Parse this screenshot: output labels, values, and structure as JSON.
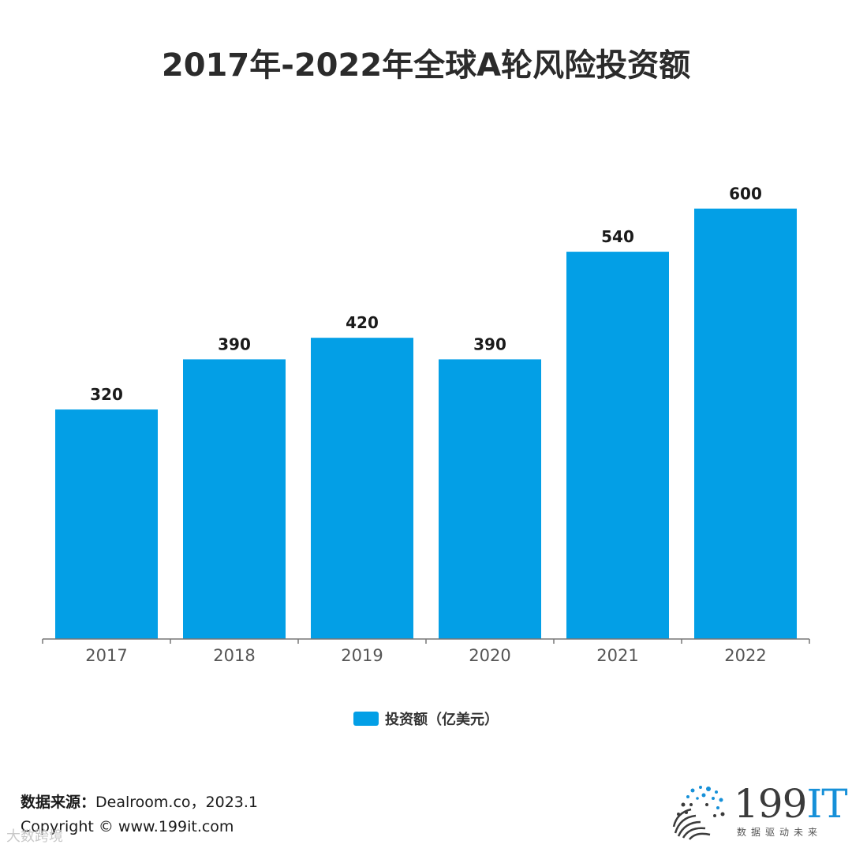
{
  "chart_data": {
    "type": "bar",
    "title": "2017年-2022年全球A轮风险投资额",
    "categories": [
      "2017",
      "2018",
      "2019",
      "2020",
      "2021",
      "2022"
    ],
    "series": [
      {
        "name": "投资额（亿美元）",
        "values": [
          320,
          390,
          420,
          390,
          540,
          600
        ]
      }
    ],
    "ylim": [
      0,
      660
    ],
    "grid": false,
    "legend": "bottom",
    "colors": {
      "bar": "#039fe6",
      "axis": "#777777"
    }
  },
  "footer": {
    "source_label": "数据来源：",
    "source_value": "Dealroom.co，2023.1",
    "copyright": "Copyright © www.199it.com"
  },
  "logo": {
    "brand_num": "199",
    "brand_it": "IT",
    "tagline": "数据驱动未来"
  },
  "watermark": "大数跨境"
}
